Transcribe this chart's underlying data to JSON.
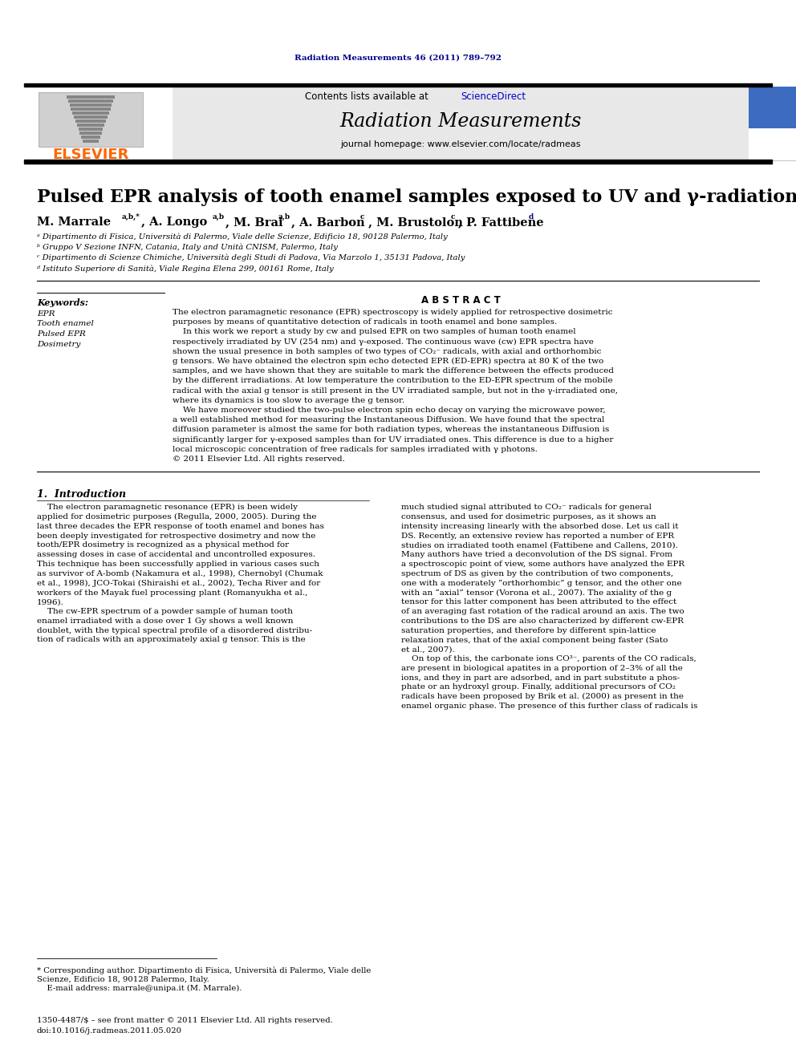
{
  "page_bg": "#ffffff",
  "top_margin_text": "Radiation Measurements 46 (2011) 789–792",
  "top_margin_color": "#00008B",
  "header_bg": "#e8e8e8",
  "header_contents_text": "Contents lists available at ",
  "header_sciencedirect": "ScienceDirect",
  "header_sciencedirect_color": "#0000CD",
  "header_journal_name": "Radiation Measurements",
  "header_homepage": "journal homepage: www.elsevier.com/locate/radmeas",
  "elsevier_color": "#FF6600",
  "title": "Pulsed EPR analysis of tooth enamel samples exposed to UV and γ-radiations",
  "affil_a": "ᵃ Dipartimento di Fisica, Università di Palermo, Viale delle Scienze, Edificio 18, 90128 Palermo, Italy",
  "affil_b": "ᵇ Gruppo V Sezione INFN, Catania, Italy and Unità CNISM, Palermo, Italy",
  "affil_c": "ᶜ Dipartimento di Scienze Chimiche, Università degli Studi di Padova, Via Marzolo 1, 35131 Padova, Italy",
  "affil_d": "ᵈ Istituto Superiore di Sanità, Viale Regina Elena 299, 00161 Rome, Italy",
  "abstract_title": "A B S T R A C T",
  "abstract_text_lines": [
    "The electron paramagnetic resonance (EPR) spectroscopy is widely applied for retrospective dosimetric",
    "purposes by means of quantitative detection of radicals in tooth enamel and bone samples.",
    "    In this work we report a study by cw and pulsed EPR on two samples of human tooth enamel",
    "respectively irradiated by UV (254 nm) and γ-exposed. The continuous wave (cw) EPR spectra have",
    "shown the usual presence in both samples of two types of CO₂⁻ radicals, with axial and orthorhombic",
    "g tensors. We have obtained the electron spin echo detected EPR (ED-EPR) spectra at 80 K of the two",
    "samples, and we have shown that they are suitable to mark the difference between the effects produced",
    "by the different irradiations. At low temperature the contribution to the ED-EPR spectrum of the mobile",
    "radical with the axial g tensor is still present in the UV irradiated sample, but not in the γ-irradiated one,",
    "where its dynamics is too slow to average the g tensor.",
    "    We have moreover studied the two-pulse electron spin echo decay on varying the microwave power,",
    "a well established method for measuring the Instantaneous Diffusion. We have found that the spectral",
    "diffusion parameter is almost the same for both radiation types, whereas the instantaneous Diffusion is",
    "significantly larger for γ-exposed samples than for UV irradiated ones. This difference is due to a higher",
    "local microscopic concentration of free radicals for samples irradiated with γ photons.",
    "© 2011 Elsevier Ltd. All rights reserved."
  ],
  "keywords_title": "Keywords:",
  "keywords": [
    "EPR",
    "Tooth enamel",
    "Pulsed EPR",
    "Dosimetry"
  ],
  "intro_title": "1.  Introduction",
  "intro_col1_lines": [
    "    The electron paramagnetic resonance (EPR) is been widely",
    "applied for dosimetric purposes (Regulla, 2000, 2005). During the",
    "last three decades the EPR response of tooth enamel and bones has",
    "been deeply investigated for retrospective dosimetry and now the",
    "tooth/EPR dosimetry is recognized as a physical method for",
    "assessing doses in case of accidental and uncontrolled exposures.",
    "This technique has been successfully applied in various cases such",
    "as survivor of A-bomb (Nakamura et al., 1998), Chernobyl (Chumak",
    "et al., 1998), JCO-Tokai (Shiraishi et al., 2002), Techa River and for",
    "workers of the Mayak fuel processing plant (Romanyukha et al.,",
    "1996).",
    "    The cw-EPR spectrum of a powder sample of human tooth",
    "enamel irradiated with a dose over 1 Gy shows a well known",
    "doublet, with the typical spectral profile of a disordered distribu-",
    "tion of radicals with an approximately axial g tensor. This is the"
  ],
  "intro_col2_lines": [
    "much studied signal attributed to CO₂⁻ radicals for general",
    "consensus, and used for dosimetric purposes, as it shows an",
    "intensity increasing linearly with the absorbed dose. Let us call it",
    "DS. Recently, an extensive review has reported a number of EPR",
    "studies on irradiated tooth enamel (Fattibene and Callens, 2010).",
    "Many authors have tried a deconvolution of the DS signal. From",
    "a spectroscopic point of view, some authors have analyzed the EPR",
    "spectrum of DS as given by the contribution of two components,",
    "one with a moderately “orthorhombic” g tensor, and the other one",
    "with an “axial” tensor (Vorona et al., 2007). The axiality of the g",
    "tensor for this latter component has been attributed to the effect",
    "of an averaging fast rotation of the radical around an axis. The two",
    "contributions to the DS are also characterized by different cw-EPR",
    "saturation properties, and therefore by different spin-lattice",
    "relaxation rates, that of the axial component being faster (Sato",
    "et al., 2007).",
    "    On top of this, the carbonate ions CO³⁻, parents of the CO radicals,",
    "are present in biological apatites in a proportion of 2–3% of all the",
    "ions, and they in part are adsorbed, and in part substitute a phos-",
    "phate or an hydroxyl group. Finally, additional precursors of CO₂",
    "radicals have been proposed by Brik et al. (2000) as present in the",
    "enamel organic phase. The presence of this further class of radicals is"
  ],
  "footnote_lines": [
    "* Corresponding author. Dipartimento di Fisica, Università di Palermo, Viale delle",
    "Scienze, Edificio 18, 90128 Palermo, Italy.",
    "    E-mail address: marrale@unipa.it (M. Marrale)."
  ],
  "footer_lines": [
    "1350-4487/$ – see front matter © 2011 Elsevier Ltd. All rights reserved.",
    "doi:10.1016/j.radmeas.2011.05.020"
  ],
  "text_color": "#000000",
  "link_color_blue": "#0000CD"
}
